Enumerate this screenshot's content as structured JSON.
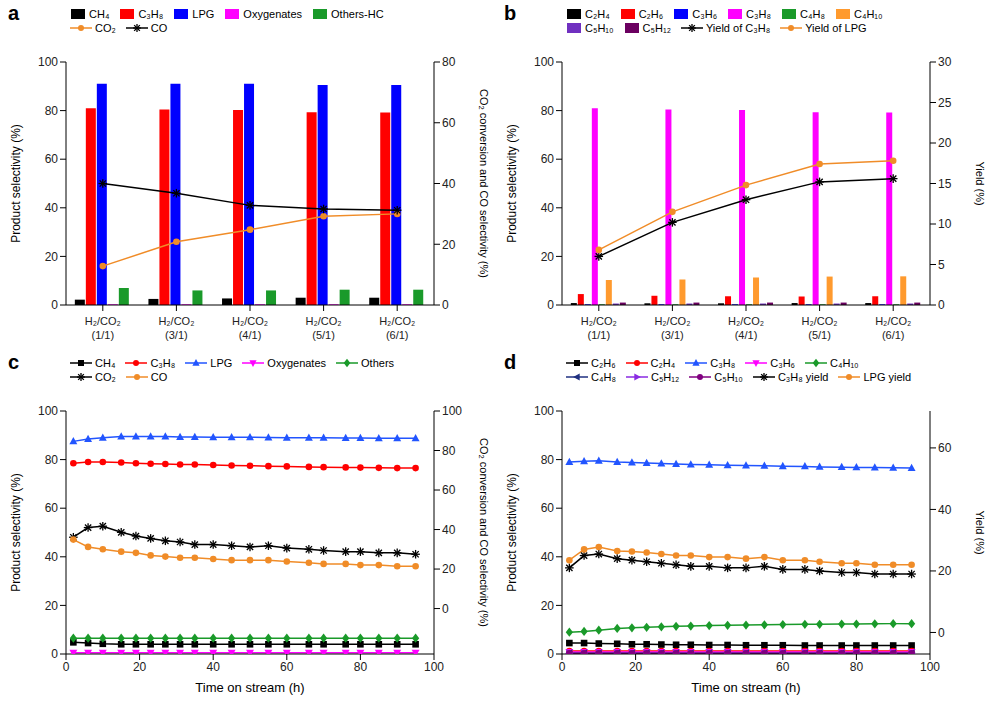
{
  "chart_data": [
    {
      "title": "a",
      "type": "bar",
      "categories": [
        "H₂/CO₂ (1/1)",
        "H₂/CO₂ (3/1)",
        "H₂/CO₂ (4/1)",
        "H₂/CO₂ (5/1)",
        "H₂/CO₂ (6/1)"
      ],
      "y_label": "Product selectivity (%)",
      "y2_label": "CO₂ conversion and CO selectivity (%)",
      "ylim": [
        0,
        100
      ],
      "yticks": [
        0,
        20,
        40,
        60,
        80,
        100
      ],
      "y2lim": [
        0,
        80
      ],
      "y2ticks": [
        0,
        20,
        40,
        60,
        80
      ],
      "grid": false,
      "series": [
        {
          "name": "CH₄",
          "type": "bar",
          "color": "#000000",
          "values": [
            2.2,
            2.5,
            2.7,
            3,
            3
          ]
        },
        {
          "name": "C₃H₈",
          "type": "bar",
          "color": "#ff0000",
          "values": [
            81,
            80.5,
            80.2,
            79.3,
            79.2
          ]
        },
        {
          "name": "LPG",
          "type": "bar",
          "color": "#0000ff",
          "values": [
            91,
            91,
            91,
            90.5,
            90.5
          ]
        },
        {
          "name": "Oxygenates",
          "type": "bar",
          "color": "#ff00ff",
          "values": [
            0.3,
            0.3,
            0.3,
            0.3,
            0.3
          ]
        },
        {
          "name": "Others-HC",
          "type": "bar",
          "color": "#1a9a2a",
          "values": [
            7,
            6,
            6,
            6.3,
            6.3
          ]
        },
        {
          "name": "CO₂",
          "type": "line",
          "axis": "y2",
          "color": "#f08c28",
          "marker": "circle",
          "values": [
            12.8,
            20.8,
            24.8,
            29.2,
            30
          ]
        },
        {
          "name": "CO",
          "type": "line",
          "axis": "y2",
          "color": "#000000",
          "marker": "star",
          "values": [
            40,
            36.8,
            32.8,
            31.6,
            31.2
          ]
        }
      ]
    },
    {
      "title": "b",
      "type": "bar",
      "categories": [
        "H₂/CO₂ (1/1)",
        "H₂/CO₂ (3/1)",
        "H₂/CO₂ (4/1)",
        "H₂/CO₂ (5/1)",
        "H₂/CO₂ (6/1)"
      ],
      "y_label": "Product selectivity (%)",
      "y2_label": "Yield (%)",
      "ylim": [
        0,
        100
      ],
      "yticks": [
        0,
        20,
        40,
        60,
        80,
        100
      ],
      "y2lim": [
        0,
        30
      ],
      "y2ticks": [
        0,
        5,
        10,
        15,
        20,
        25,
        30
      ],
      "grid": false,
      "series": [
        {
          "name": "C₂H₄",
          "type": "bar",
          "color": "#000000",
          "values": [
            0.8,
            0.7,
            0.7,
            0.8,
            0.8
          ]
        },
        {
          "name": "C₂H₆",
          "type": "bar",
          "color": "#ff0000",
          "values": [
            4.5,
            3.8,
            3.6,
            3.5,
            3.6
          ]
        },
        {
          "name": "C₃H₆",
          "type": "bar",
          "color": "#0000ff",
          "values": [
            0.3,
            0.3,
            0.3,
            0.3,
            0.3
          ]
        },
        {
          "name": "C₃H₈",
          "type": "bar",
          "color": "#ff00ff",
          "values": [
            81,
            80.5,
            80.2,
            79.3,
            79.2
          ]
        },
        {
          "name": "C₄H₈",
          "type": "bar",
          "color": "#1a9a2a",
          "values": [
            0.3,
            0.3,
            0.3,
            0.3,
            0.3
          ]
        },
        {
          "name": "C₄H₁₀",
          "type": "bar",
          "color": "#ff9a2e",
          "values": [
            10.3,
            10.5,
            11.3,
            11.7,
            11.8
          ]
        },
        {
          "name": "C₅H₁₀",
          "type": "bar",
          "color": "#7030c0",
          "values": [
            0.6,
            0.6,
            0.6,
            0.6,
            0.6
          ]
        },
        {
          "name": "C₅H₁₂",
          "type": "bar",
          "color": "#6b0060",
          "values": [
            1,
            1,
            1,
            1,
            1
          ]
        },
        {
          "name": "Yield of C₃H₈",
          "type": "line",
          "axis": "y2",
          "color": "#000000",
          "marker": "star",
          "values": [
            6,
            10.2,
            13,
            15.2,
            15.6
          ]
        },
        {
          "name": "Yield of LPG",
          "type": "line",
          "axis": "y2",
          "color": "#f08c28",
          "marker": "circle",
          "values": [
            6.8,
            11.5,
            14.8,
            17.4,
            17.8
          ]
        }
      ]
    },
    {
      "title": "c",
      "type": "line",
      "x": [
        2,
        6,
        10,
        15,
        19,
        23,
        27,
        31,
        35,
        40,
        45,
        50,
        55,
        60,
        66,
        70,
        76,
        80,
        85,
        90,
        95
      ],
      "x_label": "Time on stream (h)",
      "y_label": "Product selectivity (%)",
      "y2_label": "CO₂ conversion and CO selectivity (%)",
      "xlim": [
        0,
        100
      ],
      "xticks": [
        0,
        20,
        40,
        60,
        80,
        100
      ],
      "ylim": [
        0,
        100
      ],
      "yticks": [
        0,
        20,
        40,
        60,
        80,
        100
      ],
      "y2lim": [
        -23,
        100
      ],
      "y2ticks": [
        0,
        20,
        40,
        60,
        80,
        100
      ],
      "grid": false,
      "series": [
        {
          "name": "CH₄",
          "color": "#000000",
          "marker": "square",
          "values": [
            4.8,
            4.5,
            4.2,
            4,
            4,
            4,
            4,
            4,
            4,
            4,
            4,
            4,
            4,
            4,
            4,
            4,
            4,
            4,
            4,
            4,
            4
          ]
        },
        {
          "name": "C₃H₈",
          "color": "#ff0000",
          "marker": "circle",
          "values": [
            78.5,
            79,
            79,
            78.8,
            78.5,
            78.3,
            78.2,
            78,
            78,
            77.8,
            77.6,
            77.5,
            77.3,
            77.2,
            77,
            76.9,
            76.8,
            76.7,
            76.6,
            76.5,
            76.5
          ]
        },
        {
          "name": "LPG",
          "color": "#2255ff",
          "marker": "triangle",
          "values": [
            87.5,
            88.5,
            89,
            89.5,
            89.5,
            89.5,
            89.5,
            89.3,
            89.3,
            89.2,
            89.2,
            89.2,
            89.1,
            89,
            89,
            89,
            88.9,
            88.9,
            88.8,
            88.8,
            88.8
          ]
        },
        {
          "name": "Oxygenates",
          "color": "#ff00ff",
          "marker": "triangle-down",
          "values": [
            0.5,
            0.5,
            0.5,
            0.5,
            0.5,
            0.5,
            0.5,
            0.5,
            0.5,
            0.5,
            0.5,
            0.5,
            0.5,
            0.5,
            0.5,
            0.5,
            0.5,
            0.5,
            0.5,
            0.5,
            0.5
          ]
        },
        {
          "name": "Others",
          "color": "#1a9a2a",
          "marker": "diamond",
          "values": [
            6.5,
            6.5,
            6.5,
            6.5,
            6.5,
            6.5,
            6.5,
            6.5,
            6.5,
            6.5,
            6.5,
            6.5,
            6.5,
            6.5,
            6.5,
            6.5,
            6.5,
            6.5,
            6.5,
            6.5,
            6.5
          ]
        },
        {
          "name": "CO₂",
          "axis": "y2",
          "color": "#000000",
          "marker": "star",
          "values": [
            36.1,
            41,
            41.7,
            38.6,
            36.7,
            35.5,
            34.3,
            33.7,
            32.4,
            32.4,
            31.8,
            31.2,
            31.8,
            30.6,
            30,
            29.4,
            28.8,
            28.8,
            28.2,
            28.2,
            27.5
          ]
        },
        {
          "name": "CO",
          "axis": "y2",
          "color": "#f08c28",
          "marker": "circle",
          "values": [
            34.9,
            31.2,
            30,
            28.8,
            28.2,
            26.9,
            26.3,
            25.7,
            25.7,
            25.1,
            24.5,
            24.5,
            24.5,
            23.8,
            23.2,
            22.6,
            22.6,
            22,
            22,
            21.4,
            21.4
          ]
        }
      ]
    },
    {
      "title": "d",
      "type": "line",
      "x": [
        2,
        6,
        10,
        15,
        19,
        23,
        27,
        31,
        35,
        40,
        45,
        50,
        55,
        60,
        66,
        70,
        76,
        80,
        85,
        90,
        95
      ],
      "x_label": "Time on stream (h)",
      "y_label": "Product selectivity (%)",
      "y2_label": "Yield (%)",
      "xlim": [
        0,
        100
      ],
      "xticks": [
        0,
        20,
        40,
        60,
        80,
        100
      ],
      "ylim": [
        0,
        100
      ],
      "yticks": [
        0,
        20,
        40,
        60,
        80,
        100
      ],
      "y2lim": [
        -7,
        72
      ],
      "y2ticks": [
        0,
        20,
        40,
        60
      ],
      "grid": false,
      "series": [
        {
          "name": "C₂H₆",
          "color": "#000000",
          "marker": "square",
          "values": [
            4.5,
            4.5,
            4.3,
            4.2,
            4,
            4,
            3.9,
            3.8,
            3.8,
            3.7,
            3.7,
            3.6,
            3.6,
            3.6,
            3.5,
            3.5,
            3.5,
            3.5,
            3.5,
            3.5,
            3.5
          ]
        },
        {
          "name": "C₂H₄",
          "color": "#ff0000",
          "marker": "circle",
          "values": [
            1.2,
            1.2,
            1.2,
            1.2,
            1.2,
            1.2,
            1.2,
            1.2,
            1.2,
            1.2,
            1.2,
            1.2,
            1.2,
            1.2,
            1.2,
            1.2,
            1.2,
            1.2,
            1.2,
            1.2,
            1.2
          ]
        },
        {
          "name": "C₃H₈",
          "color": "#2255ff",
          "marker": "triangle",
          "values": [
            79,
            79.3,
            79.5,
            79,
            78.8,
            78.6,
            78.4,
            78.2,
            78,
            77.9,
            77.7,
            77.6,
            77.5,
            77.3,
            77.2,
            77,
            76.9,
            76.8,
            76.7,
            76.6,
            76.5
          ]
        },
        {
          "name": "C₃H₆",
          "color": "#ff00ff",
          "marker": "triangle-down",
          "values": [
            0.8,
            0.8,
            0.8,
            0.8,
            0.8,
            0.8,
            0.8,
            0.8,
            0.8,
            0.8,
            0.8,
            0.8,
            0.8,
            0.8,
            0.8,
            0.8,
            0.8,
            0.8,
            0.8,
            0.8,
            0.8
          ]
        },
        {
          "name": "C₄H₁₀",
          "color": "#1a9a2a",
          "marker": "diamond",
          "values": [
            9,
            9.3,
            9.8,
            10.5,
            10.8,
            11,
            11.2,
            11.4,
            11.5,
            11.7,
            11.8,
            11.9,
            12,
            12.1,
            12.2,
            12.2,
            12.3,
            12.3,
            12.4,
            12.5,
            12.5
          ]
        },
        {
          "name": "C₄H₈",
          "color": "#1f3080",
          "marker": "triangle-left",
          "values": [
            0.3,
            0.3,
            0.3,
            0.3,
            0.3,
            0.3,
            0.3,
            0.3,
            0.3,
            0.3,
            0.3,
            0.3,
            0.3,
            0.3,
            0.3,
            0.3,
            0.3,
            0.3,
            0.3,
            0.3,
            0.3
          ]
        },
        {
          "name": "C₅H₁₂",
          "color": "#8a2be2",
          "marker": "triangle-right",
          "values": [
            0.4,
            0.4,
            0.4,
            0.4,
            0.4,
            0.4,
            0.4,
            0.4,
            0.4,
            0.4,
            0.4,
            0.4,
            0.4,
            0.4,
            0.4,
            0.4,
            0.4,
            0.4,
            0.4,
            0.4,
            0.4
          ]
        },
        {
          "name": "C₅H₁₀",
          "color": "#800080",
          "marker": "circle",
          "values": [
            0.3,
            0.3,
            0.3,
            0.3,
            0.3,
            0.3,
            0.3,
            0.3,
            0.3,
            0.3,
            0.3,
            0.3,
            0.3,
            0.3,
            0.3,
            0.3,
            0.3,
            0.3,
            0.3,
            0.3,
            0.3
          ]
        },
        {
          "name": "C₃H₈ yield",
          "axis": "y2",
          "color": "#000000",
          "marker": "star",
          "values": [
            21,
            25,
            25.5,
            24,
            23.5,
            23,
            22.5,
            22,
            21.5,
            21.5,
            21,
            21,
            21.5,
            20.5,
            20.5,
            20,
            19.5,
            19.5,
            19,
            19,
            19
          ]
        },
        {
          "name": "LPG yield",
          "axis": "y2",
          "color": "#f08c28",
          "marker": "circle",
          "values": [
            23.5,
            27,
            27.8,
            26.5,
            26.3,
            26,
            25.5,
            25,
            25,
            24.5,
            24.5,
            24,
            24.5,
            23.5,
            23.5,
            23,
            22.5,
            22.5,
            22,
            22,
            22
          ]
        }
      ]
    }
  ]
}
